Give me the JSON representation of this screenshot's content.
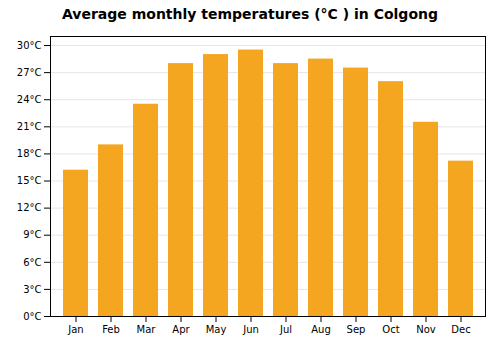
{
  "chart_data": {
    "type": "bar",
    "title": "Average monthly temperatures (°C ) in Colgong",
    "categories": [
      "Jan",
      "Feb",
      "Mar",
      "Apr",
      "May",
      "Jun",
      "Jul",
      "Aug",
      "Sep",
      "Oct",
      "Nov",
      "Dec"
    ],
    "values": [
      16.2,
      19.0,
      23.5,
      28.0,
      29.0,
      29.5,
      28.0,
      28.5,
      27.5,
      26.0,
      21.5,
      17.2
    ],
    "color": "#F5A621",
    "ylim": [
      0,
      31
    ],
    "yticks": [
      {
        "value": 0,
        "label": "0°C"
      },
      {
        "value": 3,
        "label": "3°C"
      },
      {
        "value": 6,
        "label": "6°C"
      },
      {
        "value": 9,
        "label": "9°C"
      },
      {
        "value": 12,
        "label": "12°C"
      },
      {
        "value": 15,
        "label": "15°C"
      },
      {
        "value": 18,
        "label": "18°C"
      },
      {
        "value": 21,
        "label": "21°C"
      },
      {
        "value": 24,
        "label": "24°C"
      },
      {
        "value": 27,
        "label": "27°C"
      },
      {
        "value": 30,
        "label": "30°C"
      }
    ],
    "grid": true
  }
}
